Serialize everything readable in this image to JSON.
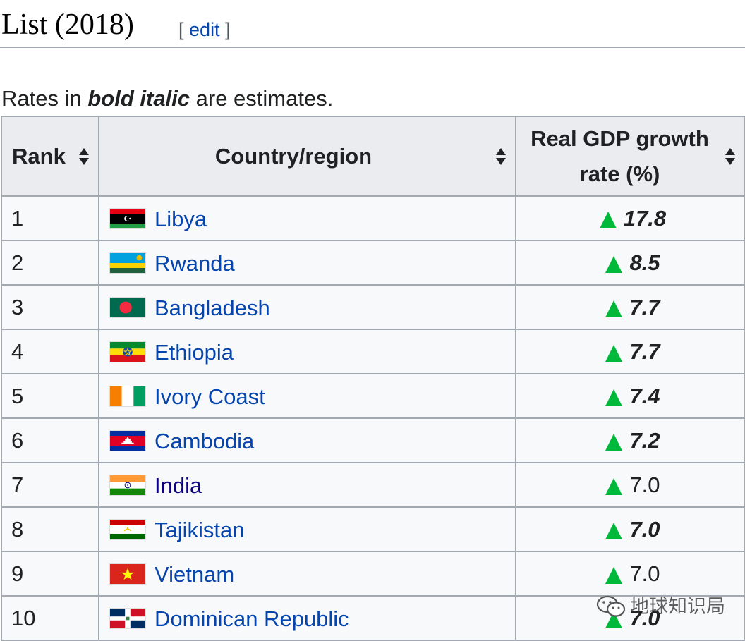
{
  "section": {
    "title": "List (2018)",
    "edit_open": "[",
    "edit_label": "edit",
    "edit_close": "]"
  },
  "note": {
    "prefix": "Rates in ",
    "emphasis": "bold italic",
    "suffix": " are estimates."
  },
  "table": {
    "headers": {
      "rank": "Rank",
      "country": "Country/region",
      "rate": "Real GDP growth rate (%)"
    },
    "rows": [
      {
        "rank": "1",
        "country": "Libya",
        "rate": "17.8",
        "estimate": true,
        "flag": "libya-flag"
      },
      {
        "rank": "2",
        "country": "Rwanda",
        "rate": "8.5",
        "estimate": true,
        "flag": "rwanda-flag"
      },
      {
        "rank": "3",
        "country": "Bangladesh",
        "rate": "7.7",
        "estimate": true,
        "flag": "bangladesh-flag"
      },
      {
        "rank": "4",
        "country": "Ethiopia",
        "rate": "7.7",
        "estimate": true,
        "flag": "ethiopia-flag"
      },
      {
        "rank": "5",
        "country": "Ivory Coast",
        "rate": "7.4",
        "estimate": true,
        "flag": "ivory-coast-flag"
      },
      {
        "rank": "6",
        "country": "Cambodia",
        "rate": "7.2",
        "estimate": true,
        "flag": "cambodia-flag"
      },
      {
        "rank": "7",
        "country": "India",
        "rate": "7.0",
        "estimate": false,
        "flag": "india-flag"
      },
      {
        "rank": "8",
        "country": "Tajikistan",
        "rate": "7.0",
        "estimate": true,
        "flag": "tajikistan-flag"
      },
      {
        "rank": "9",
        "country": "Vietnam",
        "rate": "7.0",
        "estimate": false,
        "flag": "vietnam-flag"
      },
      {
        "rank": "10",
        "country": "Dominican Republic",
        "rate": "7.0",
        "estimate": true,
        "flag": "dominican-republic-flag"
      }
    ],
    "trend_icon": "up-arrow-icon",
    "trend_color": "#00b93b",
    "link_color": "#0645ad",
    "visited_link_color": "#0b0080"
  },
  "watermark": {
    "text": "地球知识局",
    "icon": "wechat-icon"
  }
}
